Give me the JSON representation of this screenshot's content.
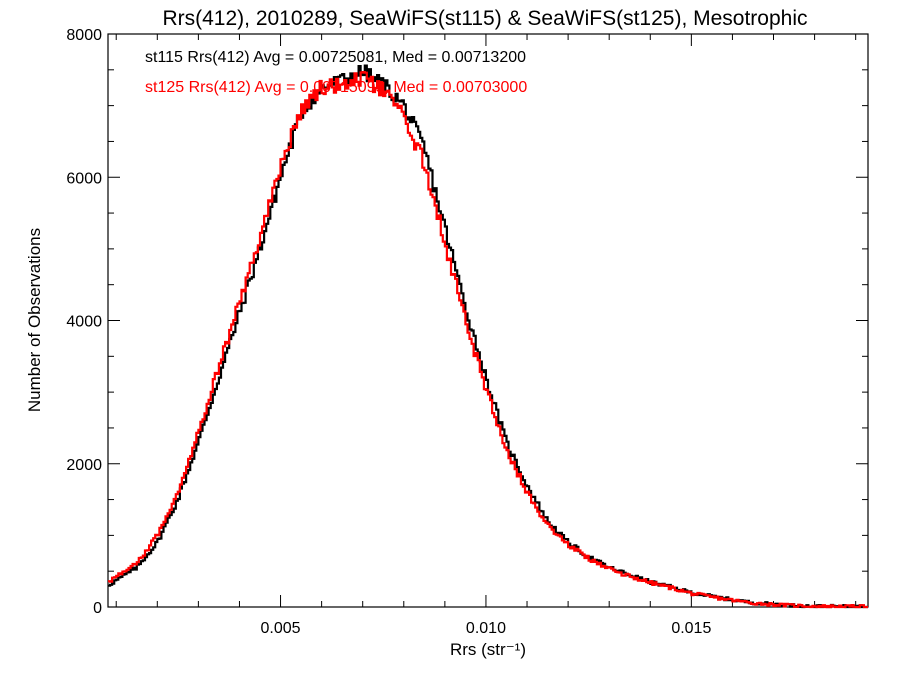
{
  "chart_data": {
    "type": "line",
    "style": "step-histogram",
    "title": "Rrs(412), 2010289, SeaWiFS(st115) & SeaWiFS(st125), Mesotrophic",
    "xlabel": "Rrs (str⁻¹)",
    "ylabel": "Number of Observations",
    "xlim": [
      0.0008,
      0.0193
    ],
    "ylim": [
      0,
      8000
    ],
    "x_ticks": [
      0.005,
      0.01,
      0.015
    ],
    "x_tick_labels": [
      "0.005",
      "0.010",
      "0.015"
    ],
    "y_ticks": [
      0,
      2000,
      4000,
      6000,
      8000
    ],
    "y_tick_labels": [
      "0",
      "2000",
      "4000",
      "6000",
      "8000"
    ],
    "grid": false,
    "legend_position": "top-left",
    "series": [
      {
        "name": "st115",
        "color": "#000000",
        "annotation": "st115 Rrs(412) Avg = 0.00725081, Med = 0.00713200",
        "peak_x": 0.007,
        "peak_y": 7480,
        "points": [
          [
            0.0008,
            300
          ],
          [
            0.0015,
            550
          ],
          [
            0.002,
            900
          ],
          [
            0.0025,
            1500
          ],
          [
            0.003,
            2300
          ],
          [
            0.0035,
            3200
          ],
          [
            0.004,
            4100
          ],
          [
            0.0045,
            5000
          ],
          [
            0.005,
            6000
          ],
          [
            0.0055,
            6900
          ],
          [
            0.006,
            7250
          ],
          [
            0.0065,
            7350
          ],
          [
            0.007,
            7480
          ],
          [
            0.0075,
            7300
          ],
          [
            0.008,
            7000
          ],
          [
            0.0085,
            6400
          ],
          [
            0.009,
            5300
          ],
          [
            0.0095,
            4200
          ],
          [
            0.01,
            3200
          ],
          [
            0.0105,
            2300
          ],
          [
            0.011,
            1700
          ],
          [
            0.0115,
            1200
          ],
          [
            0.012,
            900
          ],
          [
            0.0125,
            700
          ],
          [
            0.013,
            550
          ],
          [
            0.0135,
            450
          ],
          [
            0.014,
            350
          ],
          [
            0.0145,
            280
          ],
          [
            0.015,
            200
          ],
          [
            0.0155,
            150
          ],
          [
            0.016,
            100
          ],
          [
            0.0165,
            60
          ],
          [
            0.017,
            40
          ],
          [
            0.0175,
            20
          ],
          [
            0.018,
            10
          ],
          [
            0.0193,
            5
          ]
        ]
      },
      {
        "name": "st125",
        "color": "#ff0000",
        "annotation": "st125 Rrs(412) Avg = 0.00715095, Med = 0.00703000",
        "peak_x": 0.0069,
        "peak_y": 7380,
        "points": [
          [
            0.0008,
            350
          ],
          [
            0.0015,
            600
          ],
          [
            0.002,
            1000
          ],
          [
            0.0025,
            1600
          ],
          [
            0.003,
            2450
          ],
          [
            0.0035,
            3350
          ],
          [
            0.004,
            4250
          ],
          [
            0.0045,
            5150
          ],
          [
            0.005,
            6150
          ],
          [
            0.0055,
            6950
          ],
          [
            0.006,
            7250
          ],
          [
            0.0065,
            7300
          ],
          [
            0.007,
            7380
          ],
          [
            0.0075,
            7200
          ],
          [
            0.008,
            6850
          ],
          [
            0.0085,
            6200
          ],
          [
            0.009,
            5100
          ],
          [
            0.0095,
            4000
          ],
          [
            0.01,
            3050
          ],
          [
            0.0105,
            2200
          ],
          [
            0.011,
            1600
          ],
          [
            0.0115,
            1150
          ],
          [
            0.012,
            870
          ],
          [
            0.0125,
            680
          ],
          [
            0.013,
            530
          ],
          [
            0.0135,
            430
          ],
          [
            0.014,
            340
          ],
          [
            0.0145,
            270
          ],
          [
            0.015,
            190
          ],
          [
            0.0155,
            140
          ],
          [
            0.016,
            95
          ],
          [
            0.0165,
            55
          ],
          [
            0.017,
            35
          ],
          [
            0.0175,
            20
          ],
          [
            0.018,
            10
          ],
          [
            0.0193,
            5
          ]
        ]
      }
    ]
  }
}
